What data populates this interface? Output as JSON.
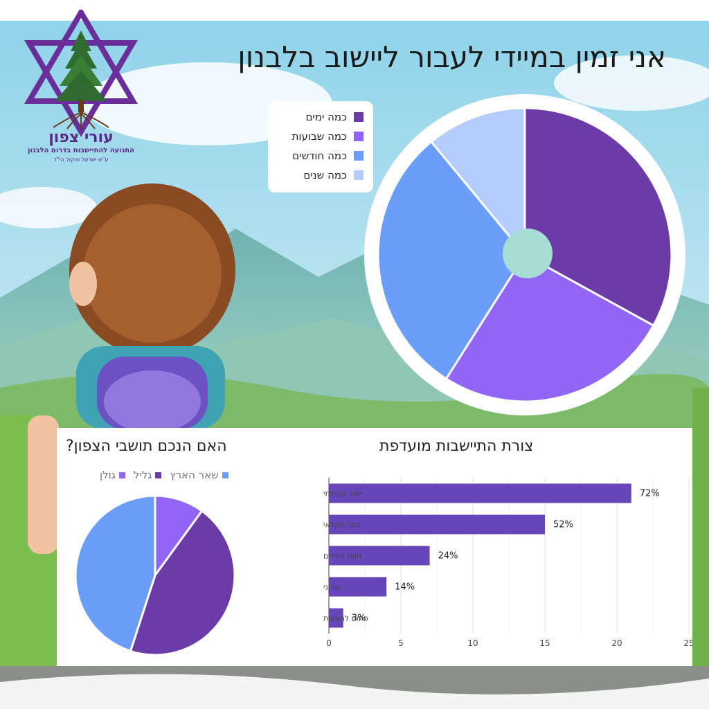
{
  "header": {
    "title": "אני זמין במיידי לעבור ליישוב בלבנון"
  },
  "logo": {
    "name": "עורי צפון",
    "tagline": "התנועה להתיישבות בדרום הלבנון",
    "dedication": "ע\"ש ישראל סוקול הי\"ד",
    "color": "#5a2a8a"
  },
  "chart_data": [
    {
      "type": "pie",
      "title": "",
      "categories": [
        "כמה ימים",
        "כמה שבועות",
        "כמה חודשים",
        "כמה שנים"
      ],
      "values": [
        33,
        26,
        30,
        11
      ],
      "colors": [
        "#6b3ba8",
        "#9166f5",
        "#6b9dfb",
        "#b5cdfc"
      ],
      "legend": "top-left",
      "donut_hole": true
    },
    {
      "type": "pie",
      "title": "האם הנכם תושבי הצפון?",
      "categories": [
        "גולן",
        "גליל",
        "שאר הארץ"
      ],
      "values": [
        10,
        45,
        45
      ],
      "colors": [
        "#9166f5",
        "#6b3ba8",
        "#6b9dfb"
      ],
      "legend": "top"
    },
    {
      "type": "bar",
      "orientation": "horizontal",
      "title": "צורת התיישבות מועדפת",
      "categories": [
        "ישוב קהילתי",
        "כפר חקלאי",
        "חוות בודדים",
        "עירוני",
        "פתוח להצעות"
      ],
      "values": [
        21,
        15,
        7,
        4,
        1
      ],
      "data_labels": [
        "72%",
        "52%",
        "24%",
        "14%",
        "3%"
      ],
      "xlim": [
        0,
        25
      ],
      "xticks": [
        "0",
        "5",
        "10",
        "15",
        "20",
        "25"
      ],
      "grid": true,
      "color": "#6646b8"
    }
  ]
}
